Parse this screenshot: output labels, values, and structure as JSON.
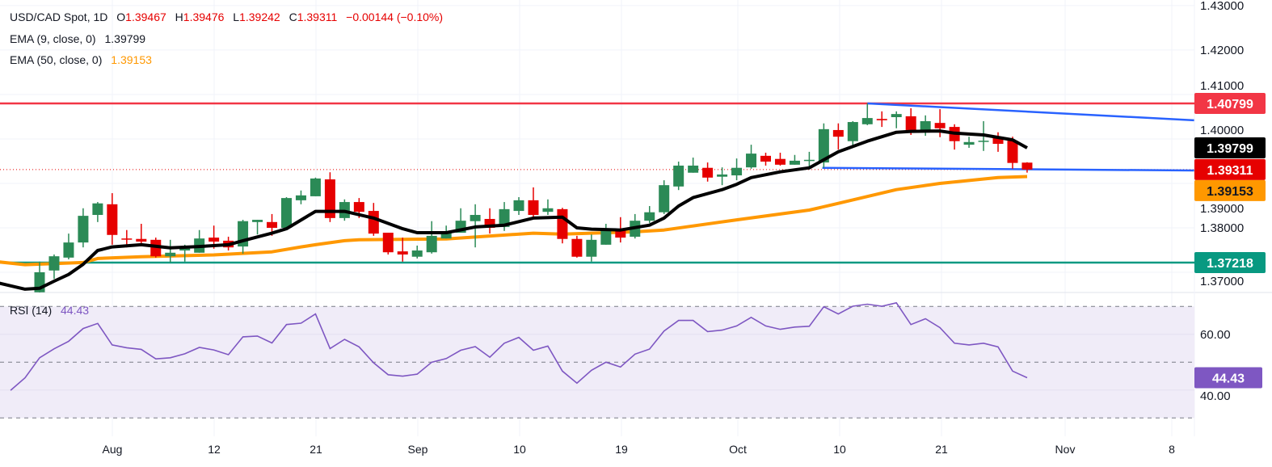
{
  "header": {
    "symbol": "USD/CAD Spot, 1D",
    "o_label": "O",
    "open": "1.39467",
    "h_label": "H",
    "high": "1.39476",
    "l_label": "L",
    "low": "1.39242",
    "c_label": "C",
    "close": "1.39311",
    "change": "−0.00144 (−0.10%)"
  },
  "indicators": [
    {
      "label": "EMA (9, close, 0)",
      "value": "1.39799"
    },
    {
      "label": "EMA (50, close, 0)",
      "value": "1.39153"
    }
  ],
  "rsi_legend": {
    "label": "RSI (14)",
    "value": "44.43"
  },
  "colors": {
    "up": "#2b8a56",
    "down": "#e60000",
    "ema9": "#000000",
    "ema50": "#ff9800",
    "resistance": "#f23645",
    "support": "#089981",
    "trendline": "#2962ff",
    "rsi": "#7e57c2",
    "rsi_band": "#f0ecf8",
    "last_price": "#e60000"
  },
  "price_axis": {
    "ticks": [
      "1.43000",
      "1.42000",
      "1.41000",
      "1.40000",
      "1.39000",
      "1.38000",
      "1.37000"
    ],
    "badges": [
      {
        "text": "1.40799",
        "value": 1.40799,
        "bg": "#f23645",
        "fg": "#ffffff"
      },
      {
        "text": "1.39799",
        "value": 1.39799,
        "bg": "#000000",
        "fg": "#ffffff"
      },
      {
        "text": "1.39311",
        "value": 1.39311,
        "bg": "#e60000",
        "fg": "#ffffff"
      },
      {
        "text": "1.39153",
        "value": 1.39153,
        "bg": "#ff9800",
        "fg": "#131722"
      },
      {
        "text": "1.37218",
        "value": 1.37218,
        "bg": "#089981",
        "fg": "#ffffff"
      }
    ]
  },
  "rsi_axis": {
    "ticks": [
      "60.00",
      "40.00"
    ],
    "badge": {
      "text": "44.43",
      "value": 44.43,
      "bg": "#7e57c2",
      "fg": "#ffffff"
    }
  },
  "time_axis": {
    "labels": [
      "Aug",
      "12",
      "21",
      "Sep",
      "10",
      "19",
      "Oct",
      "10",
      "21",
      "Nov",
      "8"
    ]
  },
  "chart_data": [
    {
      "type": "candlestick",
      "title": "USD/CAD Spot, 1D",
      "ylim": [
        1.363,
        1.431
      ],
      "grid": true,
      "candles_ohlc": [
        [
          1.3655,
          1.3724,
          1.3649,
          1.37
        ],
        [
          1.3704,
          1.374,
          1.3685,
          1.3736
        ],
        [
          1.3733,
          1.3787,
          1.3729,
          1.3767
        ],
        [
          1.3767,
          1.3844,
          1.3756,
          1.3827
        ],
        [
          1.3829,
          1.3858,
          1.3813,
          1.3855
        ],
        [
          1.3853,
          1.3878,
          1.3762,
          1.3784
        ],
        [
          1.3776,
          1.3795,
          1.3756,
          1.3775
        ],
        [
          1.3775,
          1.3809,
          1.3762,
          1.3769
        ],
        [
          1.3773,
          1.3778,
          1.3733,
          1.3736
        ],
        [
          1.3736,
          1.3773,
          1.3722,
          1.3744
        ],
        [
          1.3749,
          1.3762,
          1.3724,
          1.3755
        ],
        [
          1.3744,
          1.3795,
          1.3744,
          1.3776
        ],
        [
          1.3778,
          1.3805,
          1.3753,
          1.3769
        ],
        [
          1.3771,
          1.378,
          1.3749,
          1.3756
        ],
        [
          1.3758,
          1.3818,
          1.3742,
          1.3815
        ],
        [
          1.3813,
          1.3818,
          1.3785,
          1.3818
        ],
        [
          1.3813,
          1.3831,
          1.3782,
          1.38
        ],
        [
          1.38,
          1.3869,
          1.3795,
          1.3867
        ],
        [
          1.3862,
          1.3884,
          1.3853,
          1.3873
        ],
        [
          1.3871,
          1.3913,
          1.3871,
          1.3911
        ],
        [
          1.3909,
          1.3925,
          1.3813,
          1.3822
        ],
        [
          1.3822,
          1.3864,
          1.3816,
          1.3858
        ],
        [
          1.3858,
          1.3867,
          1.3822,
          1.3836
        ],
        [
          1.3838,
          1.3856,
          1.3782,
          1.3787
        ],
        [
          1.3789,
          1.3789,
          1.374,
          1.3745
        ],
        [
          1.3747,
          1.3778,
          1.3724,
          1.374
        ],
        [
          1.3735,
          1.376,
          1.3731,
          1.3749
        ],
        [
          1.3745,
          1.3815,
          1.3742,
          1.3782
        ],
        [
          1.3776,
          1.3805,
          1.3776,
          1.3791
        ],
        [
          1.3789,
          1.3844,
          1.3789,
          1.3816
        ],
        [
          1.3815,
          1.3853,
          1.3756,
          1.3829
        ],
        [
          1.382,
          1.3844,
          1.3787,
          1.38
        ],
        [
          1.3802,
          1.3858,
          1.3793,
          1.3842
        ],
        [
          1.3838,
          1.3869,
          1.3829,
          1.3862
        ],
        [
          1.3862,
          1.3891,
          1.3825,
          1.3829
        ],
        [
          1.3836,
          1.3864,
          1.3829,
          1.3844
        ],
        [
          1.3842,
          1.3845,
          1.3765,
          1.3775
        ],
        [
          1.3775,
          1.3782,
          1.3733,
          1.3735
        ],
        [
          1.3735,
          1.3785,
          1.3724,
          1.3773
        ],
        [
          1.3762,
          1.3809,
          1.3762,
          1.3795
        ],
        [
          1.3795,
          1.3824,
          1.3767,
          1.3778
        ],
        [
          1.378,
          1.3831,
          1.3776,
          1.3816
        ],
        [
          1.3816,
          1.3849,
          1.3811,
          1.3835
        ],
        [
          1.3835,
          1.3907,
          1.3831,
          1.3896
        ],
        [
          1.3893,
          1.3949,
          1.3885,
          1.394
        ],
        [
          1.3924,
          1.3958,
          1.3924,
          1.394
        ],
        [
          1.3935,
          1.3947,
          1.3904,
          1.3913
        ],
        [
          1.3915,
          1.3936,
          1.3896,
          1.392
        ],
        [
          1.3918,
          1.3956,
          1.3907,
          1.3935
        ],
        [
          1.3936,
          1.3987,
          1.3933,
          1.3967
        ],
        [
          1.3962,
          1.3969,
          1.394,
          1.3949
        ],
        [
          1.3955,
          1.3969,
          1.394,
          1.3942
        ],
        [
          1.3942,
          1.3964,
          1.3942,
          1.3951
        ],
        [
          1.3951,
          1.3971,
          1.3931,
          1.3953
        ],
        [
          1.3947,
          1.4035,
          1.3935,
          1.4022
        ],
        [
          1.402,
          1.4035,
          1.3976,
          1.4005
        ],
        [
          1.3995,
          1.404,
          1.3984,
          1.4038
        ],
        [
          1.4033,
          1.408,
          1.4031,
          1.4047
        ],
        [
          1.4045,
          1.4062,
          1.4027,
          1.4042
        ],
        [
          1.4049,
          1.4062,
          1.4024,
          1.4056
        ],
        [
          1.4051,
          1.4069,
          1.4009,
          1.402
        ],
        [
          1.4015,
          1.4053,
          1.4007,
          1.404
        ],
        [
          1.4036,
          1.4067,
          1.4004,
          1.4024
        ],
        [
          1.4027,
          1.4033,
          1.3976,
          1.3995
        ],
        [
          1.3987,
          1.4005,
          1.398,
          1.3993
        ],
        [
          1.3995,
          1.404,
          1.3973,
          1.3996
        ],
        [
          1.4005,
          1.4015,
          1.3971,
          1.3989
        ],
        [
          1.3996,
          1.4005,
          1.3933,
          1.3946
        ],
        [
          1.39467,
          1.39476,
          1.39242,
          1.39311
        ]
      ],
      "ema9_points": [
        [
          -3,
          1.3677
        ],
        [
          -1,
          1.3662
        ],
        [
          0,
          1.3664
        ],
        [
          1,
          1.368
        ],
        [
          2,
          1.3695
        ],
        [
          3,
          1.3718
        ],
        [
          4,
          1.3749
        ],
        [
          5,
          1.3757
        ],
        [
          7,
          1.3762
        ],
        [
          9,
          1.3755
        ],
        [
          11,
          1.3758
        ],
        [
          13,
          1.3762
        ],
        [
          14,
          1.3771
        ],
        [
          16,
          1.3788
        ],
        [
          17,
          1.3798
        ],
        [
          19,
          1.3837
        ],
        [
          21,
          1.3837
        ],
        [
          23,
          1.3822
        ],
        [
          25,
          1.3798
        ],
        [
          26,
          1.3789
        ],
        [
          28,
          1.3789
        ],
        [
          30,
          1.3802
        ],
        [
          32,
          1.3806
        ],
        [
          34,
          1.3822
        ],
        [
          36,
          1.3824
        ],
        [
          37,
          1.38
        ],
        [
          38,
          1.3797
        ],
        [
          40,
          1.3795
        ],
        [
          42,
          1.3806
        ],
        [
          43,
          1.3822
        ],
        [
          44,
          1.3849
        ],
        [
          45,
          1.3868
        ],
        [
          47,
          1.3886
        ],
        [
          48,
          1.3898
        ],
        [
          49,
          1.3913
        ],
        [
          51,
          1.3926
        ],
        [
          53,
          1.3935
        ],
        [
          54,
          1.3953
        ],
        [
          55,
          1.3971
        ],
        [
          57,
          1.3995
        ],
        [
          59,
          1.4015
        ],
        [
          60,
          1.4017
        ],
        [
          62,
          1.4018
        ],
        [
          63,
          1.4013
        ],
        [
          65,
          1.4009
        ],
        [
          67,
          1.3998
        ],
        [
          68,
          1.39799
        ]
      ],
      "ema50_points": [
        [
          -3,
          1.3724
        ],
        [
          -1,
          1.3717
        ],
        [
          3,
          1.3722
        ],
        [
          4,
          1.3731
        ],
        [
          7,
          1.3735
        ],
        [
          12,
          1.3739
        ],
        [
          16,
          1.3746
        ],
        [
          18,
          1.3757
        ],
        [
          19,
          1.3762
        ],
        [
          21,
          1.3771
        ],
        [
          22,
          1.3773
        ],
        [
          28,
          1.3775
        ],
        [
          34,
          1.3788
        ],
        [
          36,
          1.3786
        ],
        [
          41,
          1.3791
        ],
        [
          43,
          1.3795
        ],
        [
          48,
          1.3818
        ],
        [
          53,
          1.384
        ],
        [
          55,
          1.3855
        ],
        [
          59,
          1.3886
        ],
        [
          62,
          1.39
        ],
        [
          66,
          1.3913
        ],
        [
          68,
          1.39153
        ]
      ],
      "horizontal_levels": [
        {
          "value": 1.40799,
          "color": "#f23645"
        },
        {
          "value": 1.37218,
          "color": "#089981"
        }
      ],
      "last_price": 1.39311,
      "trendlines": [
        {
          "from": [
            57,
            1.408
          ],
          "to": [
            79.5,
            1.4042
          ],
          "color": "#2962ff"
        },
        {
          "from": [
            53.9,
            1.3935
          ],
          "to": [
            79.5,
            1.3929
          ],
          "color": "#2962ff"
        }
      ]
    },
    {
      "type": "line",
      "title": "RSI (14)",
      "ylim": [
        20,
        80
      ],
      "bands": [
        70,
        50,
        30
      ],
      "values": [
        39.9,
        44.4,
        51.6,
        54.8,
        57.5,
        62.1,
        63.9,
        56.2,
        55.2,
        54.6,
        51.2,
        51.6,
        53.0,
        55.3,
        54.4,
        52.7,
        59.1,
        59.4,
        56.9,
        63.5,
        64.0,
        67.3,
        54.9,
        58.2,
        55.5,
        49.8,
        45.5,
        45.0,
        45.7,
        50.0,
        51.3,
        54.3,
        55.6,
        51.8,
        56.8,
        58.9,
        54.3,
        55.8,
        46.8,
        42.5,
        47.1,
        50.0,
        48.3,
        52.9,
        54.7,
        61.2,
        65.0,
        65.0,
        61.0,
        61.5,
        63.0,
        66.1,
        63.0,
        61.8,
        62.6,
        62.9,
        69.9,
        67.3,
        70.1,
        70.8,
        70.1,
        71.3,
        63.5,
        65.6,
        62.4,
        56.8,
        56.2,
        56.8,
        55.5,
        46.8,
        44.43
      ]
    }
  ]
}
